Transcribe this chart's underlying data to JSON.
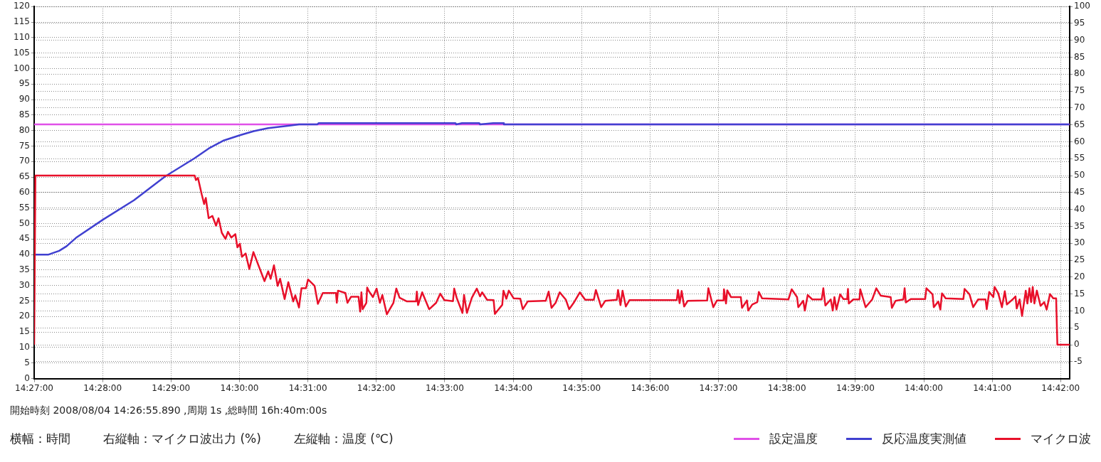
{
  "chart_data": {
    "type": "line",
    "annotations": [
      "開始時刻 2008/08/04 14:26:55.890 ,周期 1s ,総時間 16h:40m:00s",
      "横幅：時間",
      "右縦軸：マイクロ波出力 (%)",
      "左縦軸：温度 (℃)"
    ],
    "xlim": [
      14.45,
      14.7022
    ],
    "xticks": [
      {
        "value": 14.45,
        "label": "14:27:00"
      },
      {
        "value": 14.466667,
        "label": "14:28:00"
      },
      {
        "value": 14.483333,
        "label": "14:29:00"
      },
      {
        "value": 14.5,
        "label": "14:30:00"
      },
      {
        "value": 14.516667,
        "label": "14:31:00"
      },
      {
        "value": 14.533333,
        "label": "14:32:00"
      },
      {
        "value": 14.55,
        "label": "14:33:00"
      },
      {
        "value": 14.566667,
        "label": "14:34:00"
      },
      {
        "value": 14.583333,
        "label": "14:35:00"
      },
      {
        "value": 14.6,
        "label": "14:36:00"
      },
      {
        "value": 14.616667,
        "label": "14:37:00"
      },
      {
        "value": 14.633333,
        "label": "14:38:00"
      },
      {
        "value": 14.65,
        "label": "14:39:00"
      },
      {
        "value": 14.666667,
        "label": "14:40:00"
      },
      {
        "value": 14.683333,
        "label": "14:41:00"
      },
      {
        "value": 14.7,
        "label": "14:42:00"
      }
    ],
    "ylim": [
      0,
      120
    ],
    "yticks": [
      0,
      5,
      10,
      15,
      20,
      25,
      30,
      35,
      40,
      45,
      50,
      55,
      60,
      65,
      70,
      75,
      80,
      85,
      90,
      95,
      100,
      105,
      110,
      115,
      120
    ],
    "y2lim": [
      -10,
      100
    ],
    "y2ticks": [
      -5,
      0,
      5,
      10,
      15,
      20,
      25,
      30,
      35,
      40,
      45,
      50,
      55,
      60,
      65,
      70,
      75,
      80,
      85,
      90,
      95,
      100
    ],
    "grid": true,
    "legend": "bottom right",
    "marker": "none",
    "line_style": "solid",
    "series": [
      {
        "name": "設定温度",
        "color": "#e050e8",
        "x": [
          14.45,
          14.7022
        ],
        "values": [
          82,
          82
        ]
      },
      {
        "name": "反応温度実測値",
        "color": "#4040d0",
        "x": [
          14.4503,
          14.4535,
          14.4561,
          14.4579,
          14.4602,
          14.4668,
          14.4743,
          14.4819,
          14.4891,
          14.4925,
          14.496,
          14.5001,
          14.5035,
          14.507,
          14.5122,
          14.5145,
          14.519,
          14.5193,
          14.5526,
          14.5528,
          14.5542,
          14.5584,
          14.5586,
          14.5618,
          14.5643,
          14.5644,
          14.7021
        ],
        "values": [
          40,
          40,
          41.2,
          42.7,
          45.4,
          51.3,
          57.5,
          65.2,
          71.1,
          74.2,
          76.7,
          78.5,
          79.8,
          80.8,
          81.6,
          82,
          82,
          82.4,
          82.4,
          82,
          82.4,
          82.4,
          82,
          82.4,
          82.4,
          82,
          82
        ]
      },
      {
        "name": "マイクロ波",
        "color": "#e8102a",
        "axis": "y2",
        "x": [
          14.45,
          14.4503,
          14.4891,
          14.4894,
          14.4899,
          14.4908,
          14.4914,
          14.4918,
          14.4925,
          14.4934,
          14.4943,
          14.4949,
          14.4957,
          14.4966,
          14.4972,
          14.498,
          14.499,
          14.4995,
          14.5001,
          14.5006,
          14.5015,
          14.5024,
          14.5034,
          14.5044,
          14.5061,
          14.507,
          14.5076,
          14.5084,
          14.5093,
          14.5099,
          14.511,
          14.5119,
          14.5131,
          14.5136,
          14.5145,
          14.5151,
          14.5162,
          14.5167,
          14.5183,
          14.5191,
          14.5203,
          14.5235,
          14.5237,
          14.524,
          14.5258,
          14.5263,
          14.5272,
          14.529,
          14.5294,
          14.5297,
          14.53,
          14.5309,
          14.5311,
          14.5315,
          14.5325,
          14.5334,
          14.5342,
          14.5348,
          14.5359,
          14.5375,
          14.5382,
          14.539,
          14.5408,
          14.543,
          14.5432,
          14.5435,
          14.5445,
          14.5462,
          14.5479,
          14.5489,
          14.5499,
          14.552,
          14.5523,
          14.5529,
          14.5543,
          14.5547,
          14.5554,
          14.5566,
          14.5578,
          14.5586,
          14.5591,
          14.5603,
          14.5619,
          14.5622,
          14.564,
          14.5643,
          14.565,
          14.5656,
          14.5668,
          14.5684,
          14.569,
          14.5702,
          14.5746,
          14.5753,
          14.576,
          14.577,
          14.578,
          14.5795,
          14.5803,
          14.5814,
          14.5829,
          14.5842,
          14.5863,
          14.5868,
          14.5881,
          14.5891,
          14.5919,
          14.5922,
          14.5928,
          14.5933,
          14.5941,
          14.595,
          14.6065,
          14.6068,
          14.6072,
          14.6077,
          14.6083,
          14.6092,
          14.6139,
          14.6142,
          14.6154,
          14.6163,
          14.6179,
          14.618,
          14.6185,
          14.6188,
          14.6197,
          14.6221,
          14.6224,
          14.6236,
          14.6239,
          14.6249,
          14.6261,
          14.6265,
          14.6273,
          14.6337,
          14.6345,
          14.6358,
          14.6361,
          14.6373,
          14.6377,
          14.6384,
          14.6395,
          14.6418,
          14.6422,
          14.6427,
          14.644,
          14.6445,
          14.6449,
          14.6454,
          14.6463,
          14.6471,
          14.648,
          14.6482,
          14.6484,
          14.6495,
          14.651,
          14.6512,
          14.6525,
          14.6541,
          14.6551,
          14.6562,
          14.6586,
          14.6589,
          14.6598,
          14.6617,
          14.662,
          14.6623,
          14.6635,
          14.667,
          14.6673,
          14.6688,
          14.6691,
          14.6702,
          14.6707,
          14.6711,
          14.672,
          14.6763,
          14.6766,
          14.6778,
          14.6787,
          14.6799,
          14.6817,
          14.682,
          14.6826,
          14.6836,
          14.6839,
          14.6848,
          14.6857,
          14.6864,
          14.6869,
          14.6884,
          14.689,
          14.6893,
          14.69,
          14.6906,
          14.6915,
          14.6919,
          14.6924,
          14.6928,
          14.6932,
          14.6936,
          14.6942,
          14.6951,
          14.696,
          14.6966,
          14.6974,
          14.6982,
          14.6989,
          14.6992,
          14.7022
        ],
        "values": [
          0,
          50,
          50,
          48.7,
          49.3,
          44.5,
          41.6,
          43.4,
          37.4,
          38.1,
          35.2,
          37.4,
          33.1,
          31.3,
          33.4,
          31.7,
          32.7,
          28.8,
          29.9,
          26,
          27,
          22.4,
          27.4,
          24.2,
          18.8,
          21.7,
          19.5,
          23.5,
          17.4,
          19.5,
          13.5,
          18.5,
          12.8,
          14.6,
          11,
          16.7,
          16.7,
          19.3,
          17.4,
          12.1,
          15.3,
          15.3,
          12.4,
          16,
          15.3,
          12.4,
          14.2,
          14.2,
          9.8,
          15.5,
          10.5,
          12.4,
          16.9,
          15.9,
          14.1,
          16.6,
          12.4,
          14.7,
          9,
          12.4,
          16.6,
          13.9,
          12.8,
          12.8,
          15.7,
          11.7,
          15.5,
          10.5,
          12.4,
          15.1,
          13.2,
          12.9,
          16.6,
          13.9,
          9.4,
          14.7,
          9.4,
          13.9,
          16.6,
          14.3,
          15.5,
          13.3,
          13.2,
          9.1,
          11.8,
          16,
          13.6,
          16,
          13.7,
          13.6,
          10.5,
          12.8,
          13,
          15.7,
          10.9,
          12.4,
          15.5,
          13.3,
          10.5,
          12.4,
          15.5,
          13.3,
          13.3,
          16.2,
          11.1,
          13,
          13.3,
          16.2,
          11.7,
          16,
          11.3,
          13.2,
          13.2,
          16.2,
          12.3,
          15.9,
          11.3,
          13,
          13.1,
          16.7,
          11.1,
          13.1,
          13.1,
          16.4,
          12.2,
          16.1,
          14.1,
          14.1,
          10.9,
          13.1,
          10.1,
          11.9,
          12.6,
          15.6,
          13.7,
          13.4,
          16.4,
          14.1,
          11.1,
          13,
          10.1,
          14.7,
          13.4,
          13.4,
          16.7,
          11.6,
          13.4,
          10.1,
          14.1,
          10.4,
          14.9,
          13.5,
          13.5,
          16.5,
          12.2,
          13.4,
          13.4,
          16.4,
          11.1,
          13.4,
          16.7,
          14.5,
          14.1,
          10.9,
          13,
          13.4,
          16.7,
          12.5,
          13.5,
          13.5,
          16.7,
          14.9,
          11.1,
          12.8,
          10.4,
          15.2,
          13.7,
          13.5,
          16.5,
          14.9,
          11.1,
          13.4,
          13.4,
          10.5,
          15.6,
          14.1,
          17.1,
          15.2,
          11.1,
          15.8,
          11.9,
          13.5,
          14.3,
          10.7,
          13.4,
          8.5,
          16,
          12.2,
          16.7,
          12.6,
          17.1,
          12.2,
          16,
          11.5,
          12.6,
          10.4,
          15,
          13.7,
          13.7,
          0,
          0
        ]
      }
    ]
  }
}
